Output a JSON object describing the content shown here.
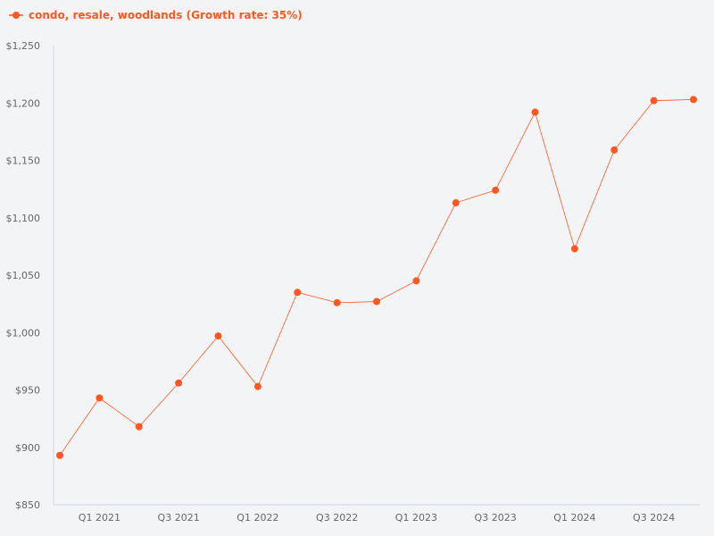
{
  "chart_data": {
    "type": "line",
    "title": "",
    "xlabel": "",
    "ylabel": "",
    "ylim": [
      850,
      1250
    ],
    "yticks": [
      850,
      900,
      950,
      1000,
      1050,
      1100,
      1150,
      1200,
      1250
    ],
    "ytick_labels": [
      "$850",
      "$900",
      "$950",
      "$1,000",
      "$1,050",
      "$1,100",
      "$1,150",
      "$1,200",
      "$1,250"
    ],
    "categories": [
      "Q4 2020",
      "Q1 2021",
      "Q2 2021",
      "Q3 2021",
      "Q4 2021",
      "Q1 2022",
      "Q2 2022",
      "Q3 2022",
      "Q4 2022",
      "Q1 2023",
      "Q2 2023",
      "Q3 2023",
      "Q4 2023",
      "Q1 2024",
      "Q2 2024",
      "Q3 2024",
      "Q4 2024"
    ],
    "xtick_labels": [
      "Q1 2021",
      "Q3 2021",
      "Q1 2022",
      "Q3 2022",
      "Q1 2023",
      "Q3 2023",
      "Q1 2024",
      "Q3 2024"
    ],
    "series": [
      {
        "name": "condo, resale, woodlands (Growth rate: 35%)",
        "color": "#ff5722",
        "values": [
          893,
          943,
          918,
          956,
          997,
          953,
          1035,
          1026,
          1027,
          1045,
          1113,
          1124,
          1192,
          1073,
          1159,
          1202,
          1203
        ]
      }
    ],
    "grid": false,
    "legend_position": "top-left"
  }
}
